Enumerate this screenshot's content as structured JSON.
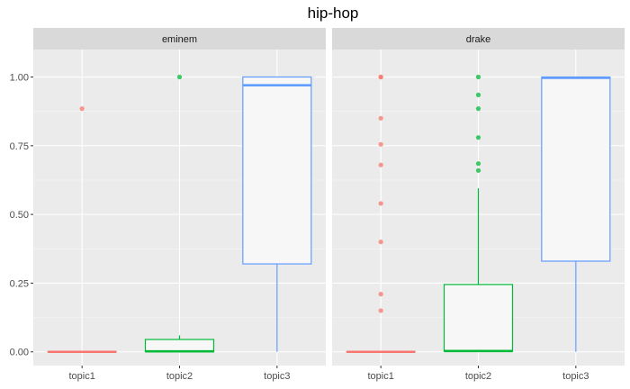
{
  "chart_data": {
    "type": "boxplot",
    "title": "hip-hop",
    "xlabel": "",
    "ylabel": "",
    "ylim": [
      -0.05,
      1.1
    ],
    "yticks": [
      "0.00",
      "0.25",
      "0.50",
      "0.75",
      "1.00"
    ],
    "ytick_values": [
      0,
      0.25,
      0.5,
      0.75,
      1.0
    ],
    "categories": [
      "topic1",
      "topic2",
      "topic3"
    ],
    "grid": true,
    "legend": "none",
    "colors": {
      "topic1": "#F8766D",
      "topic2": "#00BA38",
      "topic3": "#619CFF"
    },
    "panels": [
      {
        "name": "eminem",
        "boxes": [
          {
            "category": "topic1",
            "q1": 0,
            "median": 0,
            "q3": 0,
            "whisker_low": 0,
            "whisker_high": 0,
            "outliers": [
              0.885
            ]
          },
          {
            "category": "topic2",
            "q1": 0,
            "median": 0.002,
            "q3": 0.045,
            "whisker_low": 0,
            "whisker_high": 0.06,
            "outliers": [
              1.0
            ]
          },
          {
            "category": "topic3",
            "q1": 0.32,
            "median": 0.97,
            "q3": 1.0,
            "whisker_low": 0,
            "whisker_high": 1.0,
            "outliers": []
          }
        ]
      },
      {
        "name": "drake",
        "boxes": [
          {
            "category": "topic1",
            "q1": 0,
            "median": 0,
            "q3": 0,
            "whisker_low": 0,
            "whisker_high": 0,
            "outliers": [
              0.15,
              0.21,
              0.4,
              0.54,
              0.68,
              0.755,
              0.85,
              1.0,
              1.0
            ]
          },
          {
            "category": "topic2",
            "q1": 0.002,
            "median": 0.003,
            "q3": 0.245,
            "whisker_low": 0,
            "whisker_high": 0.595,
            "outliers": [
              0.66,
              0.685,
              0.78,
              0.885,
              0.935,
              1.0
            ]
          },
          {
            "category": "topic3",
            "q1": 0.33,
            "median": 0.997,
            "q3": 1.0,
            "whisker_low": 0,
            "whisker_high": 1.0,
            "outliers": []
          }
        ]
      }
    ]
  }
}
